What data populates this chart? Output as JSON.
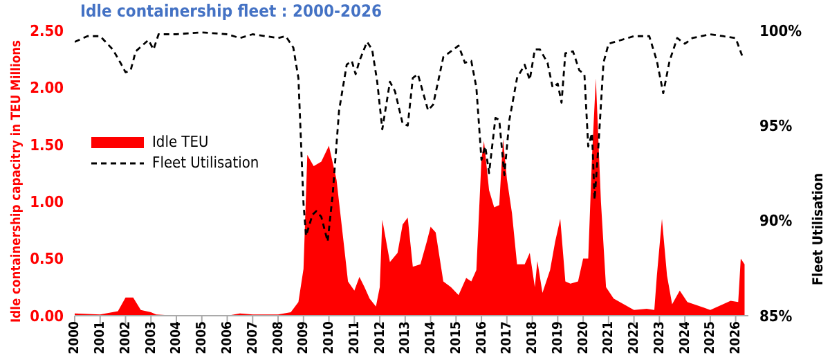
{
  "chart_data": {
    "type": "area",
    "title": "Idle containership fleet : 2000-2026",
    "ylabel": "Idle containership capacitry in TEU Millions",
    "y2label": "Fleet Utilisation",
    "xlim": [
      2000,
      2026.5
    ],
    "xticks": [
      2000,
      2001,
      2002,
      2003,
      2004,
      2005,
      2006,
      2007,
      2008,
      2009,
      2010,
      2011,
      2012,
      2013,
      2014,
      2015,
      2016,
      2017,
      2018,
      2019,
      2020,
      2021,
      2022,
      2023,
      2024,
      2025,
      2026
    ],
    "ylim": [
      0,
      2.5
    ],
    "yticks": [
      {
        "value": 0,
        "label": "0.00"
      },
      {
        "value": 0.5,
        "label": "0.50"
      },
      {
        "value": 1,
        "label": "1.00"
      },
      {
        "value": 1.5,
        "label": "1.50"
      },
      {
        "value": 2,
        "label": "2.00"
      },
      {
        "value": 2.5,
        "label": "2.50"
      }
    ],
    "y2lim": [
      85,
      100
    ],
    "y2ticks": [
      {
        "value": 85,
        "label": "85%"
      },
      {
        "value": 90,
        "label": "90%"
      },
      {
        "value": 95,
        "label": "95%"
      },
      {
        "value": 100,
        "label": "100%"
      }
    ],
    "grid": false,
    "legend": "left",
    "series": [
      {
        "name": "Idle TEU",
        "color": "#ff0000",
        "x": [
          2000,
          2001,
          2001.7,
          2002,
          2002.3,
          2002.6,
          2003,
          2003.2,
          2004,
          2005,
          2006,
          2006.5,
          2007,
          2008,
          2008.5,
          2008.8,
          2009,
          2009.15,
          2009.4,
          2009.7,
          2010,
          2010.3,
          2010.6,
          2010.75,
          2011,
          2011.2,
          2011.4,
          2011.6,
          2011.85,
          2012,
          2012.1,
          2012.4,
          2012.7,
          2012.9,
          2013.1,
          2013.3,
          2013.6,
          2013.85,
          2014,
          2014.2,
          2014.5,
          2014.8,
          2015.1,
          2015.4,
          2015.6,
          2015.8,
          2016,
          2016.1,
          2016.3,
          2016.5,
          2016.7,
          2016.85,
          2017,
          2017.2,
          2017.4,
          2017.7,
          2017.9,
          2018.1,
          2018.2,
          2018.4,
          2018.7,
          2018.9,
          2019.1,
          2019.3,
          2019.5,
          2019.8,
          2020,
          2020.2,
          2020.35,
          2020.5,
          2020.7,
          2020.9,
          2021.2,
          2021.6,
          2022,
          2022.5,
          2022.8,
          2022.9,
          2023.1,
          2023.3,
          2023.5,
          2023.8,
          2024.1,
          2024.5,
          2025,
          2025.5,
          2025.8,
          2026.1,
          2026.2,
          2026.35
        ],
        "values": [
          0.02,
          0.01,
          0.04,
          0.16,
          0.16,
          0.05,
          0.03,
          0.01,
          0,
          0,
          0,
          0.02,
          0.01,
          0.01,
          0.03,
          0.12,
          0.41,
          1.41,
          1.31,
          1.35,
          1.49,
          1.19,
          0.6,
          0.3,
          0.22,
          0.34,
          0.25,
          0.15,
          0.08,
          0.25,
          0.84,
          0.47,
          0.55,
          0.8,
          0.86,
          0.43,
          0.45,
          0.65,
          0.78,
          0.73,
          0.3,
          0.25,
          0.18,
          0.33,
          0.3,
          0.4,
          1.37,
          1.53,
          1.1,
          0.95,
          0.97,
          1.55,
          1.2,
          0.9,
          0.45,
          0.45,
          0.55,
          0.25,
          0.48,
          0.2,
          0.4,
          0.65,
          0.85,
          0.3,
          0.28,
          0.3,
          0.5,
          0.5,
          1.4,
          2.08,
          1,
          0.25,
          0.15,
          0.1,
          0.05,
          0.06,
          0.05,
          0.35,
          0.85,
          0.35,
          0.1,
          0.22,
          0.12,
          0.09,
          0.05,
          0.1,
          0.13,
          0.12,
          0.5,
          0.45
        ]
      },
      {
        "name": "Fleet Utilisation",
        "type": "line",
        "axis": "y2",
        "color": "#000000",
        "line_style": "dashed",
        "marker": "none",
        "x": [
          2000,
          2000.5,
          2001,
          2001.5,
          2001.8,
          2002,
          2002.2,
          2002.4,
          2002.9,
          2003.1,
          2003.3,
          2004,
          2005,
          2006,
          2006.5,
          2007,
          2008,
          2008.3,
          2008.6,
          2008.8,
          2009,
          2009.1,
          2009.35,
          2009.5,
          2009.7,
          2009.95,
          2010.15,
          2010.4,
          2010.7,
          2010.9,
          2011.05,
          2011.2,
          2011.5,
          2011.7,
          2011.9,
          2012.1,
          2012.4,
          2012.6,
          2012.9,
          2013.1,
          2013.3,
          2013.5,
          2013.9,
          2014.1,
          2014.5,
          2014.8,
          2015.1,
          2015.35,
          2015.6,
          2015.8,
          2016,
          2016.15,
          2016.3,
          2016.55,
          2016.7,
          2016.9,
          2017.1,
          2017.4,
          2017.7,
          2017.9,
          2018.1,
          2018.3,
          2018.6,
          2018.8,
          2019,
          2019.15,
          2019.3,
          2019.6,
          2019.85,
          2020.05,
          2020.2,
          2020.35,
          2020.45,
          2020.6,
          2020.8,
          2021,
          2021.5,
          2022,
          2022.6,
          2022.9,
          2023.15,
          2023.4,
          2023.7,
          2024,
          2024.3,
          2025,
          2025.5,
          2026,
          2026.3
        ],
        "values": [
          99.4,
          99.7,
          99.7,
          99,
          98.3,
          97.8,
          97.9,
          98.9,
          99.5,
          99,
          99.8,
          99.8,
          99.9,
          99.8,
          99.6,
          99.8,
          99.6,
          99.7,
          99.1,
          97.5,
          90.9,
          89.2,
          90.3,
          90.5,
          90.2,
          88.9,
          91.4,
          95.8,
          98.2,
          98.4,
          97.7,
          98.4,
          99.4,
          99,
          97.3,
          94.8,
          97.3,
          96.8,
          95.1,
          95,
          97.5,
          97.7,
          95.8,
          96.1,
          98.6,
          98.9,
          99.2,
          98.3,
          98.4,
          97,
          93.2,
          93.9,
          92.5,
          95.4,
          95.3,
          92.4,
          95.3,
          97.5,
          98.2,
          97.4,
          99,
          99,
          98.3,
          97,
          97.2,
          96.2,
          98.8,
          98.9,
          97.9,
          97.7,
          93.9,
          94.6,
          91.1,
          93.9,
          98.3,
          99.3,
          99.5,
          99.7,
          99.7,
          98.4,
          96.7,
          98.4,
          99.6,
          99.3,
          99.6,
          99.8,
          99.7,
          99.6,
          98.5
        ]
      }
    ]
  }
}
